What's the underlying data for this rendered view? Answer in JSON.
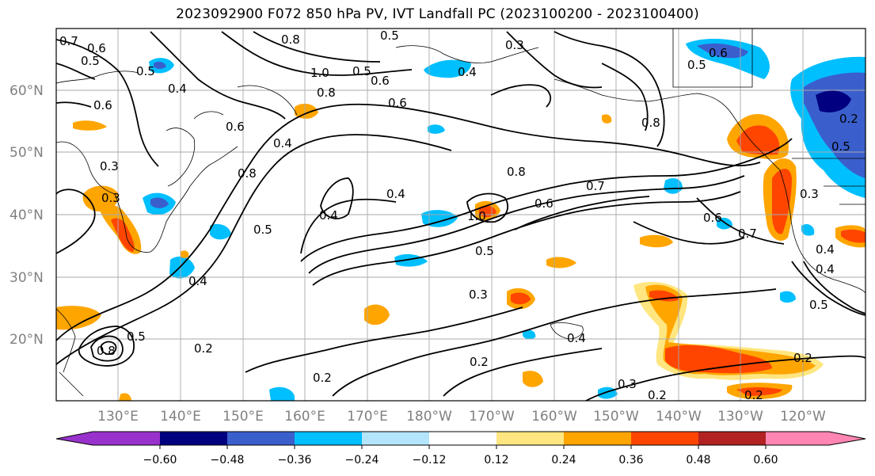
{
  "title": "2023092900 F072 850 hPa PV, IVT Landfall PC (2023100200 - 2023100400)",
  "map": {
    "lat_labels": [
      "60°N",
      "50°N",
      "40°N",
      "30°N",
      "20°N"
    ],
    "lon_labels": [
      "130°E",
      "140°E",
      "150°E",
      "160°E",
      "170°E",
      "180°W",
      "170°W",
      "160°W",
      "150°W",
      "140°W",
      "130°W",
      "120°W"
    ],
    "lat_label_color": "#808080",
    "lon_label_color": "#808080",
    "contour_labels": [
      "0.7",
      "0.6",
      "0.5",
      "0.5",
      "0.8",
      "0.5",
      "0.3",
      "1.0",
      "0.5",
      "0.4",
      "0.6",
      "0.6",
      "0.6",
      "0.4",
      "0.6",
      "0.8",
      "0.3",
      "0.4",
      "0.4",
      "0.4",
      "1.0",
      "0.8",
      "0.7",
      "0.6",
      "0.5",
      "0.3",
      "0.5",
      "0.4",
      "0.2",
      "0.2",
      "0.3",
      "0.2",
      "0.2",
      "0.2",
      "0.6",
      "0.7",
      "0.8",
      "0.4",
      "0.5",
      "0.3",
      "0.5",
      "0.6",
      "0.8",
      "0.4",
      "0.2",
      "0.8",
      "0.5",
      "0.2",
      "0.5",
      "0.4",
      "0.3"
    ]
  },
  "colorbar": {
    "tick_labels": [
      "−0.60",
      "−0.48",
      "−0.36",
      "−0.24",
      "−0.12",
      "0.12",
      "0.24",
      "0.36",
      "0.48",
      "0.60"
    ],
    "colors": [
      "#9932cc",
      "#000080",
      "#3a5fcd",
      "#00bfff",
      "#b3e5fc",
      "#ffffff",
      "#ffe680",
      "#ffa500",
      "#ff4500",
      "#b22222",
      "#ff85b3"
    ]
  }
}
